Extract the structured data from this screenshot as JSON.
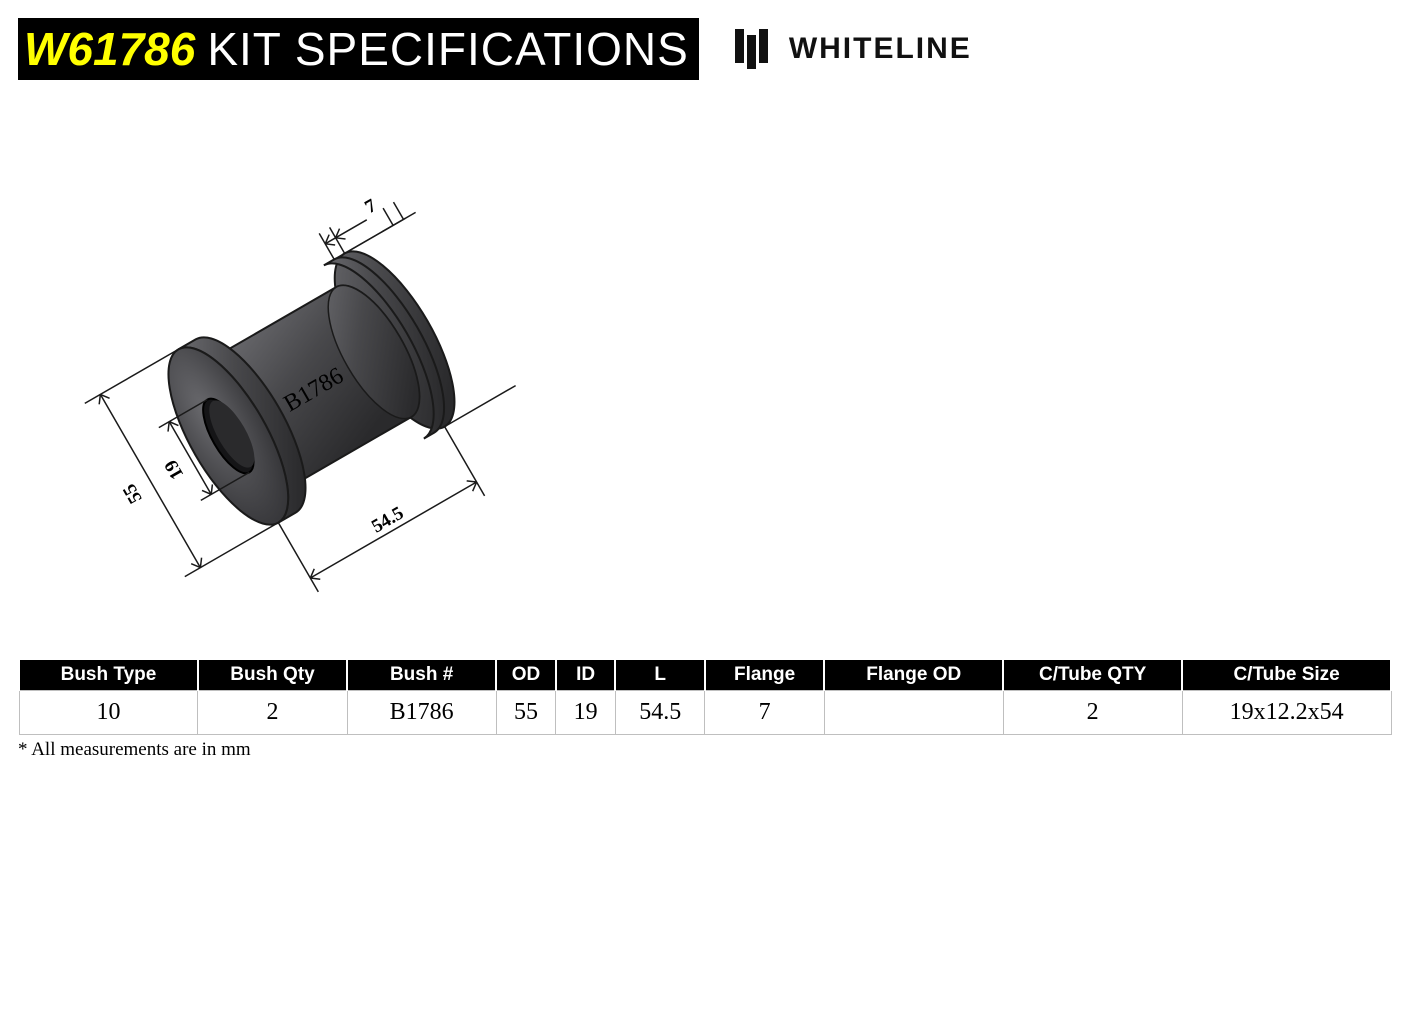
{
  "header": {
    "product_code": "W61786",
    "title_suffix": "KIT SPECIFICATIONS",
    "brand_name": "WHITELINE"
  },
  "diagram": {
    "part_label": "B1786",
    "dimensions": {
      "od": "55",
      "id": "19",
      "length": "54.5",
      "flange": "7"
    },
    "colors": {
      "body_light": "#57575b",
      "body_dark": "#2c2c2e",
      "line": "#1a1a1a"
    }
  },
  "table": {
    "columns": [
      "Bush Type",
      "Bush Qty",
      "Bush #",
      "OD",
      "ID",
      "L",
      "Flange",
      "Flange OD",
      "C/Tube QTY",
      "C/Tube Size"
    ],
    "col_widths_pct": [
      12,
      10,
      10,
      4,
      4,
      6,
      8,
      12,
      12,
      14
    ],
    "rows": [
      [
        "10",
        "2",
        "B1786",
        "55",
        "19",
        "54.5",
        "7",
        "",
        "2",
        "19x12.2x54"
      ]
    ]
  },
  "footnote": "* All measurements are in mm",
  "style": {
    "title_code_color": "#ffff00",
    "title_bg": "#000000",
    "title_text_color": "#ffffff",
    "th_bg": "#000000",
    "th_color": "#ffffff",
    "cell_border": "#bfbfbf"
  }
}
